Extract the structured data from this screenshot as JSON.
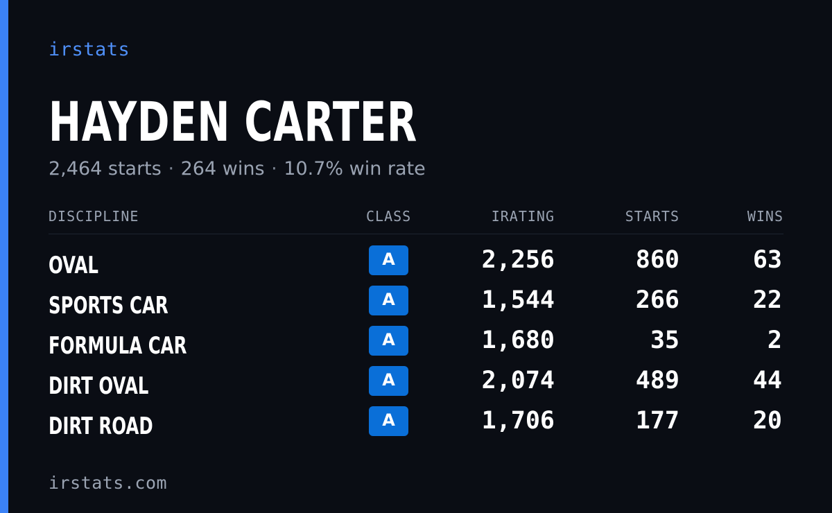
{
  "brand": "irstats",
  "player": {
    "name": "HAYDEN CARTER",
    "starts": "2,464 starts",
    "wins": "264 wins",
    "win_rate": "10.7% win rate",
    "separator": "·"
  },
  "table": {
    "headers": {
      "discipline": "DISCIPLINE",
      "class": "CLASS",
      "irating": "IRATING",
      "starts": "STARTS",
      "wins": "WINS"
    },
    "rows": [
      {
        "discipline": "OVAL",
        "class": "A",
        "irating": "2,256",
        "starts": "860",
        "wins": "63"
      },
      {
        "discipline": "SPORTS CAR",
        "class": "A",
        "irating": "1,544",
        "starts": "266",
        "wins": "22"
      },
      {
        "discipline": "FORMULA CAR",
        "class": "A",
        "irating": "1,680",
        "starts": "35",
        "wins": "2"
      },
      {
        "discipline": "DIRT OVAL",
        "class": "A",
        "irating": "2,074",
        "starts": "489",
        "wins": "44"
      },
      {
        "discipline": "DIRT ROAD",
        "class": "A",
        "irating": "1,706",
        "starts": "177",
        "wins": "20"
      }
    ]
  },
  "footer": "irstats.com",
  "colors": {
    "background": "#0a0d14",
    "accent": "#3b82f6",
    "badge": "#0a6fd8",
    "muted_text": "#9aa3b2"
  }
}
